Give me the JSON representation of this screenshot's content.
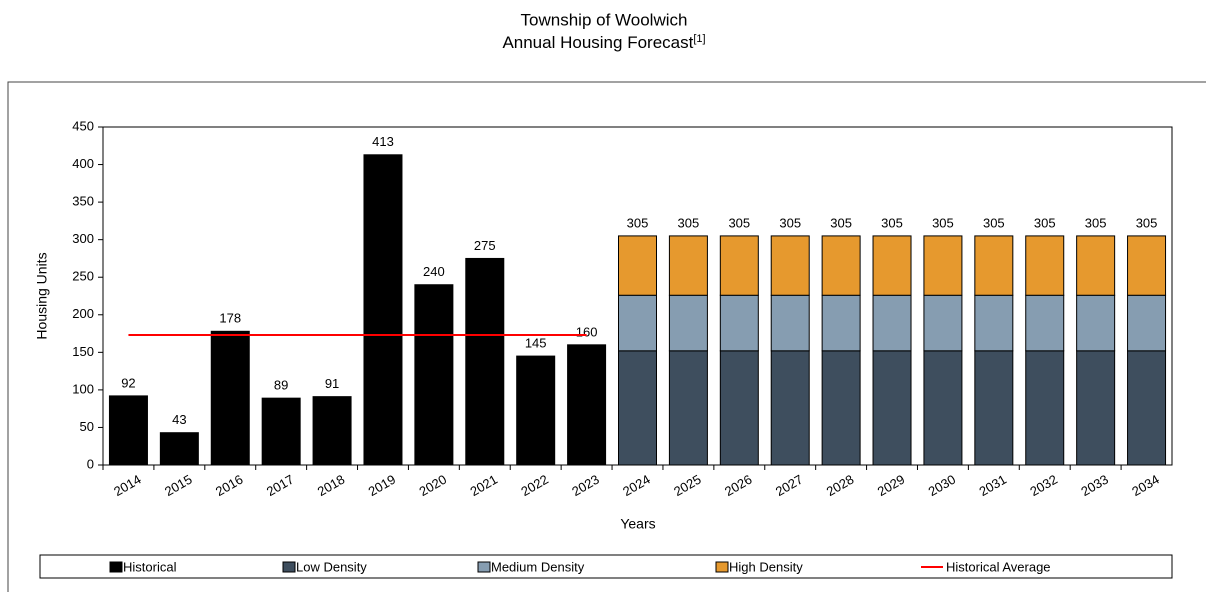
{
  "chart_data": {
    "type": "bar",
    "stacked": true,
    "title": "Township of Woolwich",
    "subtitle": "Annual Housing Forecast",
    "title_note": "[1]",
    "x_label": "Years",
    "y_label": "Housing Units",
    "categories": [
      "2014",
      "2015",
      "2016",
      "2017",
      "2018",
      "2019",
      "2020",
      "2021",
      "2022",
      "2023",
      "2024",
      "2025",
      "2026",
      "2027",
      "2028",
      "2029",
      "2030",
      "2031",
      "2032",
      "2033",
      "2034"
    ],
    "series": [
      {
        "name": "Historical",
        "type": "bar",
        "color": "#000000",
        "values": [
          92,
          43,
          178,
          89,
          91,
          413,
          240,
          275,
          145,
          160,
          null,
          null,
          null,
          null,
          null,
          null,
          null,
          null,
          null,
          null,
          null
        ]
      },
      {
        "name": "Low Density",
        "type": "bar",
        "color": "#3e4e5e",
        "values": [
          null,
          null,
          null,
          null,
          null,
          null,
          null,
          null,
          null,
          null,
          152,
          152,
          152,
          152,
          152,
          152,
          152,
          152,
          152,
          152,
          152
        ]
      },
      {
        "name": "Medium Density",
        "type": "bar",
        "color": "#869db1",
        "values": [
          null,
          null,
          null,
          null,
          null,
          null,
          null,
          null,
          null,
          null,
          74,
          74,
          74,
          74,
          74,
          74,
          74,
          74,
          74,
          74,
          74
        ]
      },
      {
        "name": "High Density",
        "type": "bar",
        "color": "#e6992e",
        "values": [
          null,
          null,
          null,
          null,
          null,
          null,
          null,
          null,
          null,
          null,
          79,
          79,
          79,
          79,
          79,
          79,
          79,
          79,
          79,
          79,
          79
        ]
      },
      {
        "name": "Historical Average",
        "type": "line",
        "color": "#ff0000",
        "values": [
          173,
          173,
          173,
          173,
          173,
          173,
          173,
          173,
          173,
          173,
          null,
          null,
          null,
          null,
          null,
          null,
          null,
          null,
          null,
          null,
          null
        ]
      }
    ],
    "totals": [
      null,
      null,
      null,
      null,
      null,
      null,
      null,
      null,
      null,
      null,
      305,
      305,
      305,
      305,
      305,
      305,
      305,
      305,
      305,
      305,
      305
    ],
    "ylim": [
      0,
      450
    ],
    "yticks": [
      0,
      50,
      100,
      150,
      200,
      250,
      300,
      350,
      400,
      450
    ],
    "grid": false,
    "legend_position": "bottom"
  }
}
